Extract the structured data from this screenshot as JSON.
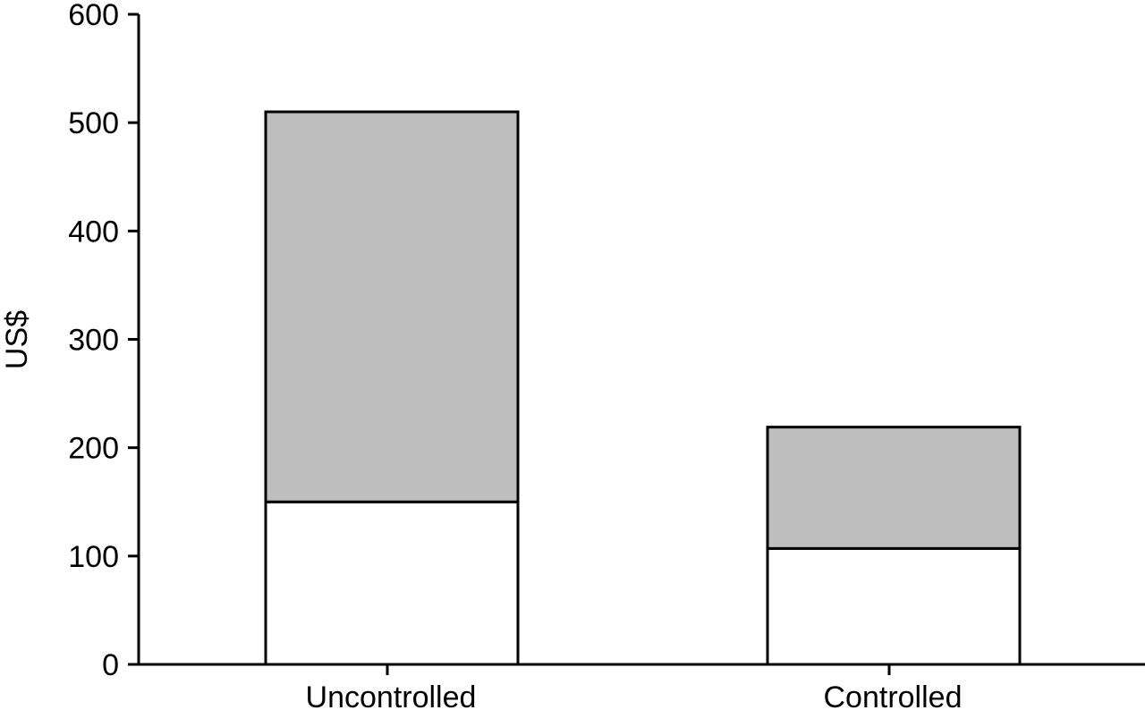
{
  "chart_data": {
    "type": "bar",
    "stacked": true,
    "categories": [
      "Uncontrolled",
      "Controlled"
    ],
    "series": [
      {
        "values": [
          150,
          107
        ],
        "color": "#ffffff"
      },
      {
        "values": [
          360,
          112
        ],
        "color": "#bebebe"
      }
    ],
    "title": "",
    "xlabel": "",
    "ylabel": "US$",
    "ylim": [
      0,
      600
    ],
    "yticks": [
      0,
      100,
      200,
      300,
      400,
      500,
      600
    ],
    "grid": false,
    "legend": "none"
  }
}
